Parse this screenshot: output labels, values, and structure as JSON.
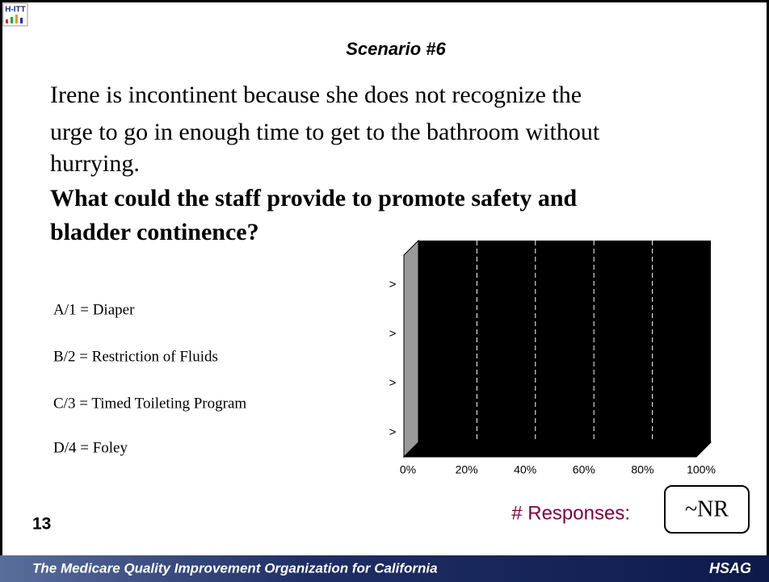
{
  "logo": "H-ITT",
  "title": "Scenario #6",
  "body": [
    "Irene is incontinent because she does not recognize the",
    "urge to go in enough time to get to the bathroom without",
    "hurrying."
  ],
  "question": [
    "What could the staff provide to promote safety and",
    "bladder continence?"
  ],
  "options": [
    "A/1 = Diaper",
    "B/2 = Restriction of Fluids",
    "C/3 = Timed Toileting Program",
    "D/4 = Foley"
  ],
  "chart_data": {
    "type": "bar",
    "orientation": "horizontal",
    "categories": [
      ">",
      ">",
      ">",
      ">"
    ],
    "values": [
      0,
      0,
      0,
      0
    ],
    "xlim": [
      0,
      100
    ],
    "xticks": [
      {
        "value": 0,
        "label": "0%"
      },
      {
        "value": 20,
        "label": "20%"
      },
      {
        "value": 40,
        "label": "40%"
      },
      {
        "value": 60,
        "label": "60%"
      },
      {
        "value": 80,
        "label": "80%"
      },
      {
        "value": 100,
        "label": "100%"
      }
    ],
    "grid": true,
    "color": "#3333cc"
  },
  "slide_number": "13",
  "responses_label": "# Responses:",
  "responses_value": "~NR",
  "footer": {
    "text": "The Medicare Quality Improvement Organization for California",
    "brand": "HSAG"
  }
}
